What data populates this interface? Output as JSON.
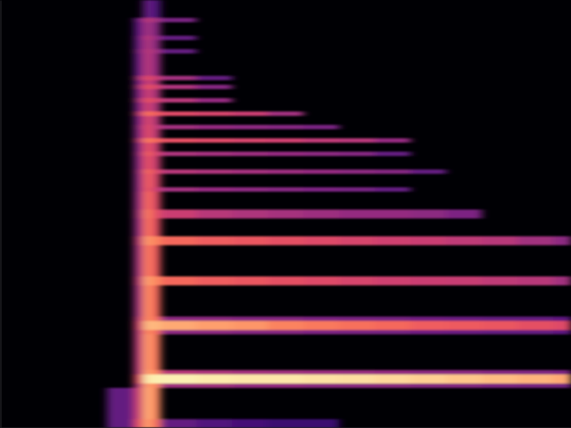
{
  "chart_data": {
    "type": "heatmap",
    "color": "magma",
    "color_range": [
      0,
      1
    ],
    "tick_labels": false,
    "xlim": [
      0,
      64
    ],
    "ylim": [
      0,
      96
    ],
    "xticks": [],
    "yticks": [],
    "x_edges": [
      0,
      9,
      12,
      15,
      16,
      17,
      18,
      22,
      26,
      30,
      34,
      38,
      42,
      46,
      50,
      54,
      58,
      62,
      64
    ],
    "y_edges": [
      0,
      2,
      9,
      10,
      12,
      13,
      21,
      22,
      24,
      25,
      32,
      34,
      41,
      43,
      47,
      49,
      53,
      54,
      57,
      58,
      61,
      62,
      64,
      65,
      67,
      68,
      70,
      71,
      73,
      74,
      76,
      77,
      78,
      79,
      84,
      85,
      87,
      88,
      91,
      92,
      96
    ],
    "values": [
      [
        null,
        null,
        0.3,
        0.6,
        0.8,
        0.7,
        0.3,
        0.25,
        0.22,
        0.2,
        0.2,
        null,
        null,
        null,
        null,
        null,
        null,
        null
      ],
      [
        null,
        null,
        0.3,
        0.55,
        0.82,
        0.75,
        null,
        null,
        null,
        null,
        null,
        null,
        null,
        null,
        null,
        null,
        null,
        null
      ],
      [
        null,
        null,
        null,
        0.5,
        0.8,
        0.75,
        0.45,
        0.45,
        0.42,
        0.42,
        0.4,
        0.4,
        0.4,
        0.38,
        0.38,
        0.36,
        0.35,
        0.34
      ],
      [
        null,
        null,
        null,
        0.6,
        0.95,
        0.97,
        0.97,
        0.96,
        0.95,
        0.95,
        0.94,
        0.93,
        0.92,
        0.9,
        0.88,
        0.86,
        0.84,
        0.82
      ],
      [
        null,
        null,
        null,
        0.5,
        0.8,
        0.75,
        0.5,
        0.48,
        0.46,
        0.45,
        0.44,
        0.43,
        0.42,
        0.4,
        0.4,
        0.38,
        0.37,
        0.36
      ],
      [
        null,
        null,
        null,
        0.5,
        0.78,
        0.72,
        null,
        null,
        null,
        null,
        null,
        null,
        null,
        null,
        null,
        null,
        null,
        null
      ],
      [
        null,
        null,
        null,
        0.5,
        0.75,
        0.7,
        0.4,
        0.4,
        0.38,
        0.38,
        0.36,
        0.35,
        0.34,
        0.33,
        0.32,
        0.3,
        0.3,
        0.28
      ],
      [
        null,
        null,
        null,
        0.55,
        0.85,
        0.85,
        0.82,
        0.8,
        0.78,
        0.74,
        0.72,
        0.7,
        0.68,
        0.66,
        0.65,
        0.64,
        0.62,
        0.6
      ],
      [
        null,
        null,
        null,
        0.5,
        0.75,
        0.7,
        0.4,
        0.4,
        0.38,
        0.38,
        0.36,
        0.35,
        0.34,
        0.33,
        0.32,
        0.3,
        0.3,
        0.28
      ],
      [
        null,
        null,
        null,
        0.45,
        0.75,
        0.68,
        null,
        null,
        null,
        null,
        null,
        null,
        null,
        null,
        null,
        null,
        null,
        null
      ],
      [
        null,
        null,
        null,
        0.5,
        0.8,
        0.75,
        0.68,
        0.66,
        0.64,
        0.62,
        0.6,
        0.58,
        0.56,
        0.55,
        0.54,
        0.52,
        0.5,
        0.45
      ],
      [
        null,
        null,
        null,
        0.45,
        0.72,
        0.65,
        null,
        null,
        null,
        null,
        null,
        null,
        null,
        null,
        null,
        null,
        null,
        null
      ],
      [
        null,
        null,
        null,
        0.5,
        0.78,
        0.74,
        0.68,
        0.66,
        0.64,
        0.62,
        0.6,
        0.58,
        0.56,
        0.55,
        0.52,
        0.5,
        0.45,
        0.4
      ],
      [
        null,
        null,
        null,
        0.42,
        0.7,
        0.62,
        null,
        null,
        null,
        null,
        null,
        null,
        null,
        null,
        null,
        null,
        null,
        null
      ],
      [
        null,
        null,
        null,
        0.45,
        0.72,
        0.62,
        0.55,
        0.5,
        0.48,
        0.46,
        0.44,
        0.42,
        0.42,
        0.4,
        0.36,
        null,
        null,
        null
      ],
      [
        null,
        null,
        null,
        0.42,
        0.68,
        0.6,
        null,
        null,
        null,
        null,
        null,
        null,
        null,
        null,
        null,
        null,
        null,
        null
      ],
      [
        null,
        null,
        null,
        0.4,
        0.65,
        0.55,
        0.45,
        0.42,
        0.4,
        0.38,
        0.36,
        0.34,
        0.3,
        null,
        null,
        null,
        null,
        null
      ],
      [
        null,
        null,
        null,
        0.4,
        0.66,
        0.58,
        null,
        null,
        null,
        null,
        null,
        null,
        null,
        null,
        null,
        null,
        null,
        null
      ],
      [
        null,
        null,
        null,
        0.42,
        0.68,
        0.6,
        0.5,
        0.48,
        0.46,
        0.44,
        0.42,
        0.4,
        0.38,
        0.3,
        null,
        null,
        null,
        null
      ],
      [
        null,
        null,
        null,
        0.38,
        0.62,
        0.55,
        null,
        null,
        null,
        null,
        null,
        null,
        null,
        null,
        null,
        null,
        null,
        null
      ],
      [
        null,
        null,
        null,
        0.42,
        0.66,
        0.58,
        0.48,
        0.46,
        0.44,
        0.42,
        0.4,
        0.38,
        0.3,
        null,
        null,
        null,
        null,
        null
      ],
      [
        null,
        null,
        null,
        0.38,
        0.62,
        0.55,
        null,
        null,
        null,
        null,
        null,
        null,
        null,
        null,
        null,
        null,
        null,
        null
      ],
      [
        null,
        null,
        null,
        0.5,
        0.72,
        0.68,
        0.62,
        0.6,
        0.58,
        0.56,
        0.52,
        0.5,
        0.42,
        null,
        null,
        null,
        null,
        null
      ],
      [
        null,
        null,
        null,
        0.38,
        0.6,
        0.52,
        null,
        null,
        null,
        null,
        null,
        null,
        null,
        null,
        null,
        null,
        null,
        null
      ],
      [
        null,
        null,
        null,
        0.4,
        0.6,
        0.52,
        0.45,
        0.42,
        0.4,
        0.38,
        0.35,
        null,
        null,
        null,
        null,
        null,
        null,
        null
      ],
      [
        null,
        null,
        null,
        0.36,
        0.58,
        0.5,
        null,
        null,
        null,
        null,
        null,
        null,
        null,
        null,
        null,
        null,
        null,
        null
      ],
      [
        null,
        null,
        null,
        0.5,
        0.7,
        0.66,
        0.6,
        0.58,
        0.55,
        0.45,
        null,
        null,
        null,
        null,
        null,
        null,
        null,
        null
      ],
      [
        null,
        null,
        null,
        0.35,
        0.56,
        0.48,
        null,
        null,
        null,
        null,
        null,
        null,
        null,
        null,
        null,
        null,
        null,
        null
      ],
      [
        null,
        null,
        null,
        0.45,
        0.62,
        0.58,
        0.5,
        0.42,
        null,
        null,
        null,
        null,
        null,
        null,
        null,
        null,
        null,
        null
      ],
      [
        null,
        null,
        null,
        0.35,
        0.55,
        0.48,
        null,
        null,
        null,
        null,
        null,
        null,
        null,
        null,
        null,
        null,
        null,
        null
      ],
      [
        null,
        null,
        null,
        0.45,
        0.62,
        0.58,
        0.48,
        0.38,
        null,
        null,
        null,
        null,
        null,
        null,
        null,
        null,
        null,
        null
      ],
      [
        null,
        null,
        null,
        0.35,
        0.55,
        0.48,
        null,
        null,
        null,
        null,
        null,
        null,
        null,
        null,
        null,
        null,
        null,
        null
      ],
      [
        null,
        null,
        null,
        0.45,
        0.6,
        0.55,
        0.45,
        0.3,
        null,
        null,
        null,
        null,
        null,
        null,
        null,
        null,
        null,
        null
      ],
      [
        null,
        null,
        null,
        0.3,
        0.5,
        0.42,
        null,
        null,
        null,
        null,
        null,
        null,
        null,
        null,
        null,
        null,
        null,
        null
      ],
      [
        null,
        null,
        null,
        0.35,
        0.5,
        0.45,
        0.3,
        null,
        null,
        null,
        null,
        null,
        null,
        null,
        null,
        null,
        null,
        null
      ],
      [
        null,
        null,
        null,
        0.3,
        0.48,
        0.4,
        null,
        null,
        null,
        null,
        null,
        null,
        null,
        null,
        null,
        null,
        null,
        null
      ],
      [
        null,
        null,
        null,
        0.32,
        0.5,
        0.42,
        0.3,
        null,
        null,
        null,
        null,
        null,
        null,
        null,
        null,
        null,
        null,
        null
      ],
      [
        null,
        null,
        null,
        0.28,
        0.45,
        0.38,
        null,
        null,
        null,
        null,
        null,
        null,
        null,
        null,
        null,
        null,
        null,
        null
      ],
      [
        null,
        null,
        null,
        0.32,
        0.5,
        0.45,
        0.35,
        null,
        null,
        null,
        null,
        null,
        null,
        null,
        null,
        null,
        null,
        null
      ],
      [
        null,
        null,
        null,
        null,
        0.3,
        0.25,
        null,
        null,
        null,
        null,
        null,
        null,
        null,
        null,
        null,
        null,
        null,
        null
      ]
    ]
  }
}
